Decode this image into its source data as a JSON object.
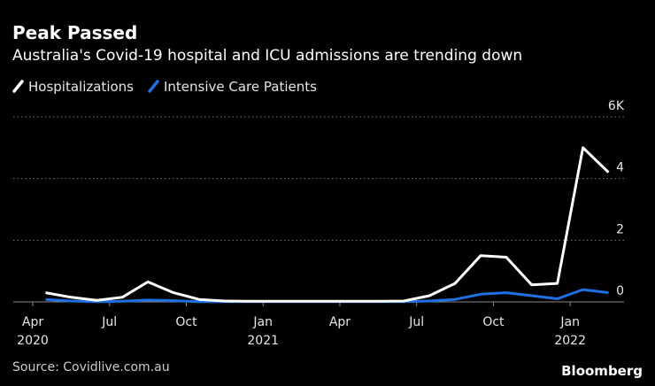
{
  "chart_data": {
    "type": "line",
    "title": "Peak Passed",
    "subtitle": "Australia's Covid-19 hospital and ICU admissions are trending down",
    "source": "Source: Covidlive.com.au",
    "brand": "Bloomberg",
    "x": [
      "2020-04",
      "2020-05",
      "2020-06",
      "2020-07",
      "2020-08",
      "2020-09",
      "2020-10",
      "2020-11",
      "2020-12",
      "2021-01",
      "2021-02",
      "2021-03",
      "2021-04",
      "2021-05",
      "2021-06",
      "2021-07",
      "2021-08",
      "2021-09",
      "2021-10",
      "2021-11",
      "2021-12",
      "2022-01",
      "2022-02"
    ],
    "series": [
      {
        "name": "Hospitalizations",
        "color": "#ffffff",
        "values": [
          0.3,
          0.15,
          0.05,
          0.15,
          0.65,
          0.3,
          0.08,
          0.03,
          0.02,
          0.02,
          0.02,
          0.02,
          0.02,
          0.02,
          0.03,
          0.2,
          0.6,
          1.5,
          1.45,
          0.55,
          0.6,
          5.0,
          4.2
        ]
      },
      {
        "name": "Intensive Care Patients",
        "color": "#1f6fe5",
        "values": [
          0.08,
          0.03,
          0.01,
          0.02,
          0.06,
          0.04,
          0.01,
          0.01,
          0.01,
          0.01,
          0.01,
          0.01,
          0.01,
          0.01,
          0.01,
          0.03,
          0.08,
          0.25,
          0.3,
          0.2,
          0.1,
          0.4,
          0.3
        ]
      }
    ],
    "xlim": [
      "2020-04",
      "2022-03"
    ],
    "xticks": [
      {
        "value": "2020-04",
        "label": "Apr"
      },
      {
        "value": "2020-07",
        "label": "Jul"
      },
      {
        "value": "2020-10",
        "label": "Oct"
      },
      {
        "value": "2021-01",
        "label": "Jan"
      },
      {
        "value": "2021-04",
        "label": "Apr"
      },
      {
        "value": "2021-07",
        "label": "Jul"
      },
      {
        "value": "2021-10",
        "label": "Oct"
      },
      {
        "value": "2022-01",
        "label": "Jan"
      }
    ],
    "xtick_years": [
      {
        "value": "2020-04",
        "label": "2020"
      },
      {
        "value": "2021-01",
        "label": "2021"
      },
      {
        "value": "2022-01",
        "label": "2022"
      }
    ],
    "ylim": [
      0,
      6
    ],
    "yticks": [
      0,
      2,
      4,
      {
        "value": 6,
        "label": "6K"
      }
    ],
    "grid": true
  }
}
